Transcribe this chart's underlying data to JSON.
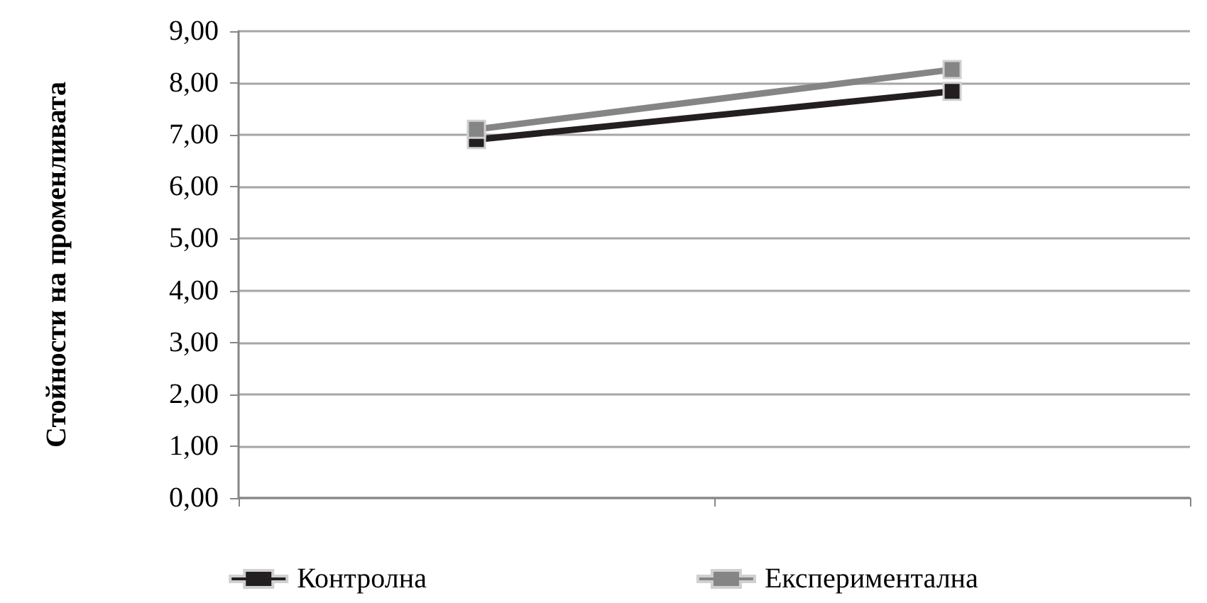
{
  "chart_data": {
    "type": "line",
    "ylabel": "Стойности на променливата",
    "categories": [
      null,
      null
    ],
    "series": [
      {
        "name": "Контролна",
        "color": "#231f20",
        "values": [
          6.91,
          7.84
        ]
      },
      {
        "name": "Експериментална",
        "color": "#858585",
        "values": [
          7.11,
          8.26
        ]
      }
    ],
    "ylim": [
      0,
      9
    ],
    "yticks": [
      {
        "value": 0,
        "label": "0,00"
      },
      {
        "value": 1,
        "label": "1,00"
      },
      {
        "value": 2,
        "label": "2,00"
      },
      {
        "value": 3,
        "label": "3,00"
      },
      {
        "value": 4,
        "label": "4,00"
      },
      {
        "value": 5,
        "label": "5,00"
      },
      {
        "value": 6,
        "label": "6,00"
      },
      {
        "value": 7,
        "label": "7,00"
      },
      {
        "value": 8,
        "label": "8,00"
      },
      {
        "value": 9,
        "label": "9,00"
      }
    ],
    "grid": "y",
    "legend": "bottom",
    "marker": "square",
    "line_style": "solid"
  }
}
